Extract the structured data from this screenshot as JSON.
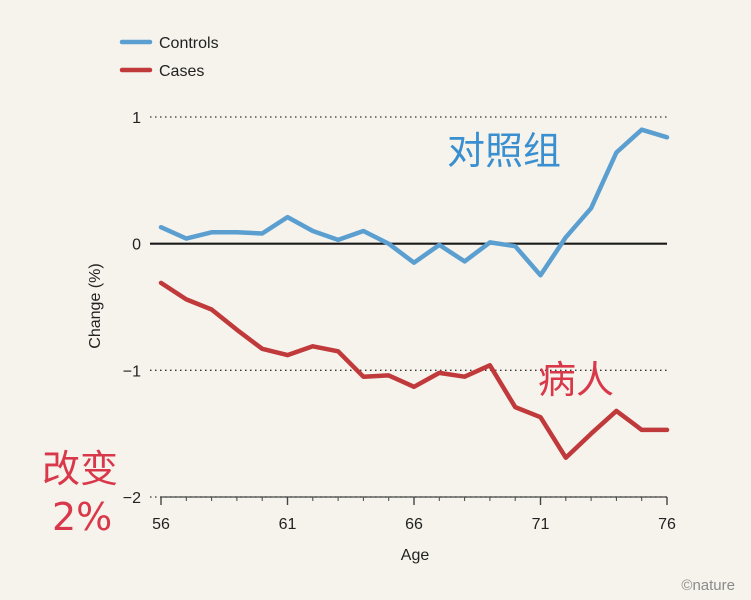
{
  "chart_data": {
    "type": "line",
    "title": "",
    "xlabel": "Age",
    "ylabel": "Change (%)",
    "xlim": [
      56,
      76
    ],
    "ylim": [
      -2,
      1
    ],
    "x_ticks": [
      "56",
      "61",
      "66",
      "71",
      "76"
    ],
    "y_ticks": [
      "1",
      "0",
      "−1",
      "−2"
    ],
    "legend": [
      {
        "name": "Controls",
        "color": "#5b9fd1"
      },
      {
        "name": "Cases",
        "color": "#c0393b"
      }
    ],
    "x": [
      56,
      57,
      58,
      59,
      60,
      61,
      62,
      63,
      64,
      65,
      66,
      67,
      68,
      69,
      70,
      71,
      72,
      73,
      74,
      75,
      76
    ],
    "series": [
      {
        "name": "Controls",
        "color": "#5b9fd1",
        "values": [
          0.13,
          0.04,
          0.09,
          0.09,
          0.08,
          0.21,
          0.1,
          0.03,
          0.1,
          0.0,
          -0.15,
          -0.01,
          -0.14,
          0.01,
          -0.02,
          -0.25,
          0.05,
          0.28,
          0.72,
          0.9,
          0.84
        ]
      },
      {
        "name": "Cases",
        "color": "#c0393b",
        "values": [
          -0.31,
          -0.44,
          -0.52,
          -0.68,
          -0.83,
          -0.88,
          -0.81,
          -0.85,
          -1.05,
          -1.04,
          -1.13,
          -1.02,
          -1.05,
          -0.96,
          -1.29,
          -1.37,
          -1.69,
          -1.5,
          -1.32,
          -1.47,
          -1.47
        ]
      }
    ],
    "annotations": [
      {
        "text": "对照组",
        "color": "#3a8fd0"
      },
      {
        "text": "病人",
        "color": "#d9384a"
      },
      {
        "text": "改变",
        "color": "#d9384a"
      },
      {
        "text": "2%",
        "color": "#d9384a"
      }
    ],
    "baseline": 0
  },
  "credit": "©nature"
}
